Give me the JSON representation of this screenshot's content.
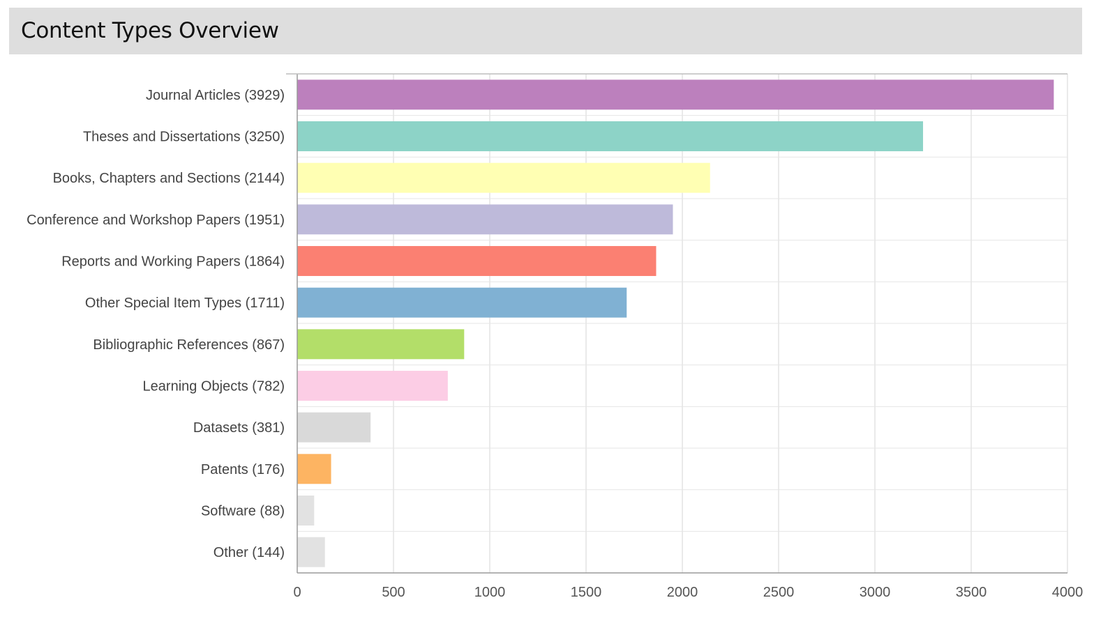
{
  "header": {
    "title": "Content Types Overview"
  },
  "chart_data": {
    "type": "bar",
    "orientation": "horizontal",
    "title": "Content Types Overview",
    "xlabel": "",
    "ylabel": "",
    "xlim": [
      0,
      4000
    ],
    "xticks": [
      0,
      500,
      1000,
      1500,
      2000,
      2500,
      3000,
      3500,
      4000
    ],
    "grid": true,
    "legend": "none",
    "categories": [
      "Journal Articles (3929)",
      "Theses and Dissertations (3250)",
      "Books, Chapters and Sections (2144)",
      "Conference and Workshop Papers (1951)",
      "Reports and Working Papers (1864)",
      "Other Special Item Types (1711)",
      "Bibliographic References (867)",
      "Learning Objects (782)",
      "Datasets (381)",
      "Patents (176)",
      "Software (88)",
      "Other (144)"
    ],
    "values": [
      3929,
      3250,
      2144,
      1951,
      1864,
      1711,
      867,
      782,
      381,
      176,
      88,
      144
    ],
    "colors": [
      "#bc80bd",
      "#8dd3c7",
      "#ffffb3",
      "#bebada",
      "#fb8072",
      "#80b1d3",
      "#b3de69",
      "#fccde5",
      "#d9d9d9",
      "#fdb462",
      "#e2e2e2",
      "#e2e2e2"
    ]
  }
}
